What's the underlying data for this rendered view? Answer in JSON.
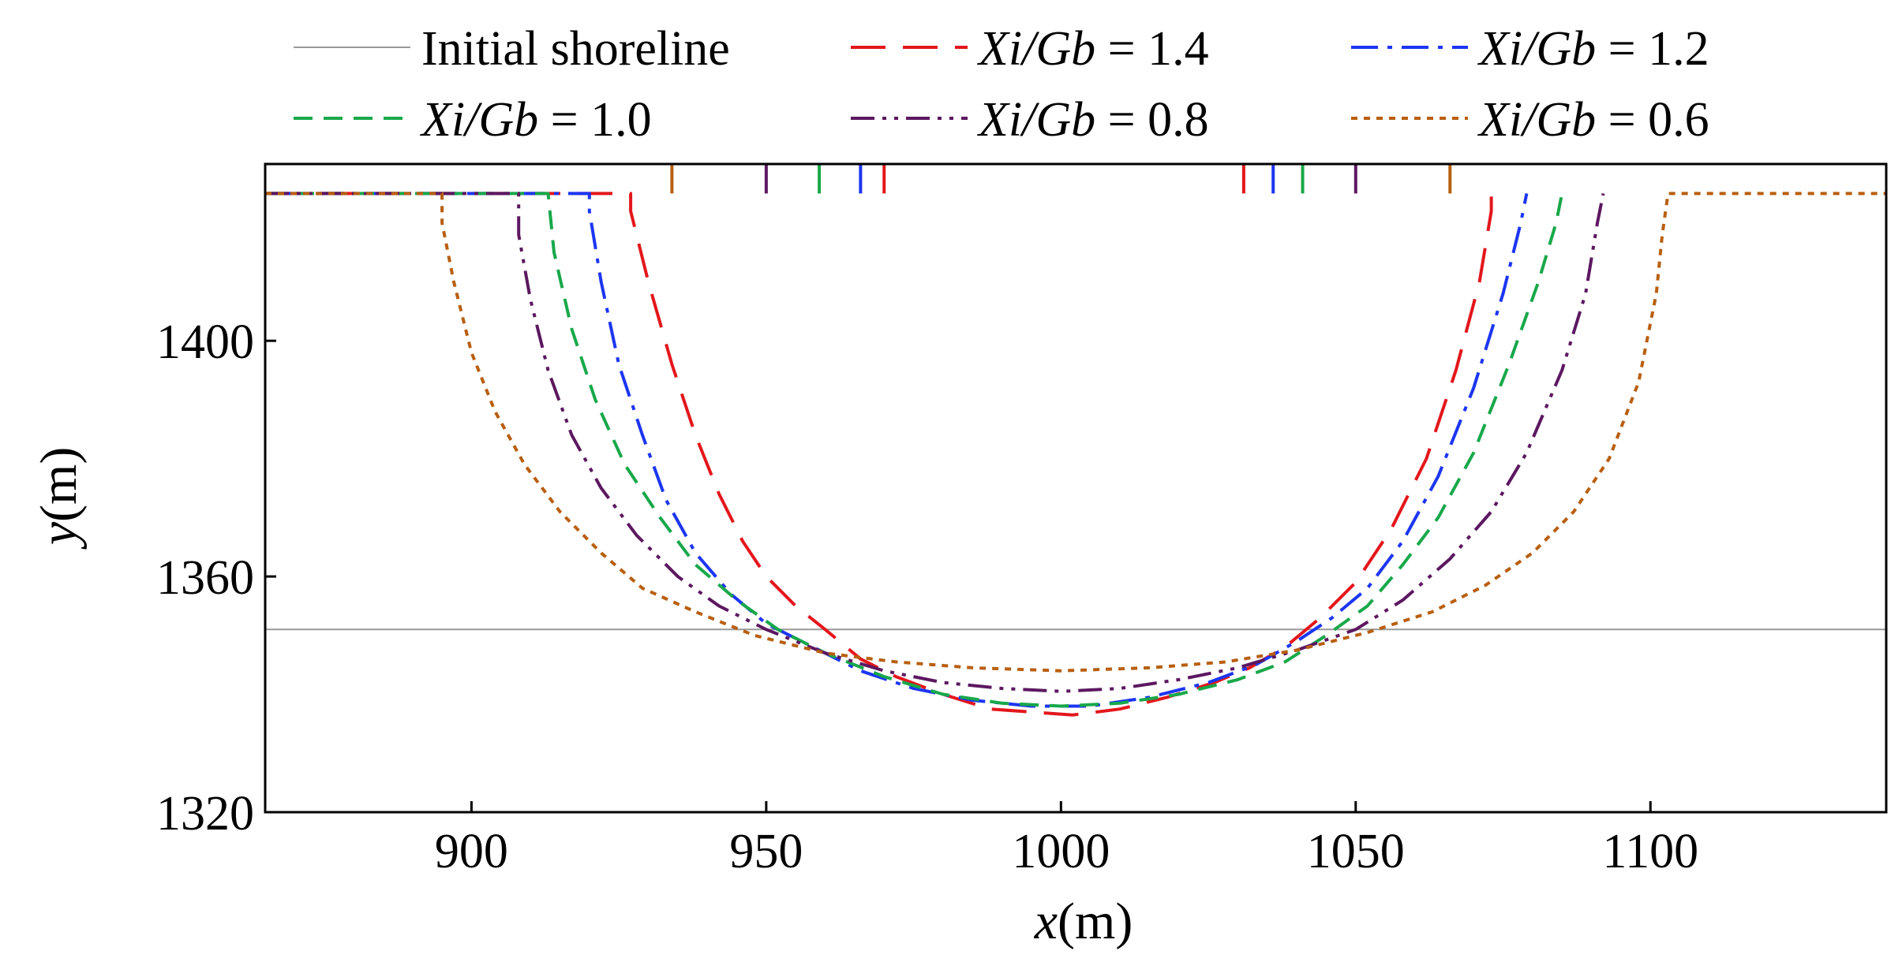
{
  "chart_data": {
    "type": "line",
    "xlabel": "x(m)",
    "ylabel": "y(m)",
    "xlim": [
      865,
      1140
    ],
    "ylim": [
      1320,
      1430
    ],
    "x_ticks": [
      900,
      950,
      1000,
      1050,
      1100
    ],
    "y_ticks": [
      1320,
      1360,
      1400
    ],
    "x_tick_labels": [
      "900",
      "950",
      "1000",
      "1050",
      "1100"
    ],
    "y_tick_labels": [
      "1320",
      "1360",
      "1400"
    ],
    "grid": false,
    "legend_position": "top",
    "series": [
      {
        "name": "Initial shoreline",
        "legend_label": "Initial shoreline",
        "color": "#999999",
        "dash": "solid",
        "points": [
          [
            865,
            1351
          ],
          [
            1140,
            1351
          ]
        ]
      },
      {
        "name": "Xi/Gb = 1.4",
        "legend_italic": "Xi/Gb",
        "legend_value": " = 1.4",
        "color": "#e3171c",
        "dash": "longdash",
        "points": [
          [
            865,
            1425
          ],
          [
            927,
            1425
          ],
          [
            927,
            1422
          ],
          [
            930,
            1410
          ],
          [
            934,
            1396
          ],
          [
            938,
            1384
          ],
          [
            942,
            1374
          ],
          [
            946,
            1366
          ],
          [
            950,
            1360
          ],
          [
            955,
            1355
          ],
          [
            960,
            1351
          ],
          [
            966,
            1346
          ],
          [
            972,
            1343
          ],
          [
            980,
            1340
          ],
          [
            988,
            1337.5
          ],
          [
            995,
            1337
          ],
          [
            1002,
            1336.5
          ],
          [
            1010,
            1337.5
          ],
          [
            1018,
            1339.5
          ],
          [
            1026,
            1342
          ],
          [
            1032,
            1344.5
          ],
          [
            1038,
            1348
          ],
          [
            1044,
            1353
          ],
          [
            1050,
            1359
          ],
          [
            1056,
            1368
          ],
          [
            1062,
            1380
          ],
          [
            1067,
            1395
          ],
          [
            1071,
            1410
          ],
          [
            1073,
            1422
          ],
          [
            1073,
            1425
          ]
        ],
        "gap": {
          "x": [
            970,
            1031
          ],
          "y": 1431
        }
      },
      {
        "name": "Xi/Gb = 1.2",
        "legend_italic": "Xi/Gb",
        "legend_value": " = 1.2",
        "color": "#1c36f2",
        "dash": "dashdot",
        "points": [
          [
            865,
            1425
          ],
          [
            920,
            1425
          ],
          [
            920,
            1422
          ],
          [
            922,
            1410
          ],
          [
            925,
            1396
          ],
          [
            929,
            1384
          ],
          [
            933,
            1373
          ],
          [
            938,
            1364
          ],
          [
            944,
            1357
          ],
          [
            950,
            1352
          ],
          [
            958,
            1348
          ],
          [
            966,
            1344
          ],
          [
            975,
            1341
          ],
          [
            985,
            1339
          ],
          [
            995,
            1338
          ],
          [
            1005,
            1338
          ],
          [
            1015,
            1339.5
          ],
          [
            1025,
            1342
          ],
          [
            1033,
            1345
          ],
          [
            1040,
            1349
          ],
          [
            1046,
            1353
          ],
          [
            1052,
            1358
          ],
          [
            1058,
            1366
          ],
          [
            1064,
            1377
          ],
          [
            1070,
            1392
          ],
          [
            1075,
            1408
          ],
          [
            1078,
            1420
          ],
          [
            1079,
            1425
          ]
        ],
        "gap": {
          "x": [
            966,
            1036
          ],
          "y": 1431
        }
      },
      {
        "name": "Xi/Gb = 1.0",
        "legend_italic": "Xi/Gb",
        "legend_value": " = 1.0",
        "color": "#18a84a",
        "dash": "dash",
        "points": [
          [
            865,
            1425
          ],
          [
            913,
            1425
          ],
          [
            914,
            1415
          ],
          [
            917,
            1402
          ],
          [
            921,
            1390
          ],
          [
            926,
            1379
          ],
          [
            932,
            1370
          ],
          [
            938,
            1362
          ],
          [
            945,
            1356
          ],
          [
            952,
            1351
          ],
          [
            960,
            1347
          ],
          [
            970,
            1343
          ],
          [
            980,
            1340
          ],
          [
            990,
            1338.5
          ],
          [
            1000,
            1338
          ],
          [
            1010,
            1338.5
          ],
          [
            1020,
            1340
          ],
          [
            1030,
            1342.5
          ],
          [
            1038,
            1345.5
          ],
          [
            1045,
            1350
          ],
          [
            1052,
            1355
          ],
          [
            1058,
            1362
          ],
          [
            1064,
            1370
          ],
          [
            1070,
            1381
          ],
          [
            1076,
            1396
          ],
          [
            1081,
            1410
          ],
          [
            1084,
            1420
          ],
          [
            1085,
            1425
          ]
        ],
        "gap": {
          "x": [
            959,
            1041
          ],
          "y": 1431
        }
      },
      {
        "name": "Xi/Gb = 0.8",
        "legend_italic": "Xi/Gb",
        "legend_value": " = 0.8",
        "color": "#5c1860",
        "dash": "dashdotdot",
        "points": [
          [
            865,
            1425
          ],
          [
            908,
            1425
          ],
          [
            908,
            1418
          ],
          [
            910,
            1407
          ],
          [
            913,
            1395
          ],
          [
            917,
            1384
          ],
          [
            922,
            1375
          ],
          [
            928,
            1367
          ],
          [
            935,
            1360
          ],
          [
            942,
            1355
          ],
          [
            950,
            1351
          ],
          [
            960,
            1347
          ],
          [
            970,
            1344
          ],
          [
            980,
            1342
          ],
          [
            990,
            1341
          ],
          [
            1000,
            1340.5
          ],
          [
            1010,
            1341
          ],
          [
            1020,
            1342.5
          ],
          [
            1030,
            1344.5
          ],
          [
            1040,
            1347.5
          ],
          [
            1050,
            1351
          ],
          [
            1058,
            1356
          ],
          [
            1066,
            1363
          ],
          [
            1073,
            1371
          ],
          [
            1079,
            1381
          ],
          [
            1085,
            1395
          ],
          [
            1089,
            1408
          ],
          [
            1091,
            1420
          ],
          [
            1092,
            1425
          ]
        ],
        "gap": {
          "x": [
            950,
            1050
          ],
          "y": 1431
        }
      },
      {
        "name": "Xi/Gb = 0.6",
        "legend_italic": "Xi/Gb",
        "legend_value": " = 0.6",
        "color": "#b85f10",
        "dash": "dot",
        "points": [
          [
            865,
            1425
          ],
          [
            895,
            1425
          ],
          [
            895,
            1420
          ],
          [
            897,
            1410
          ],
          [
            900,
            1398
          ],
          [
            904,
            1388
          ],
          [
            909,
            1379
          ],
          [
            915,
            1371
          ],
          [
            922,
            1364
          ],
          [
            929,
            1358
          ],
          [
            938,
            1354
          ],
          [
            948,
            1350
          ],
          [
            960,
            1347
          ],
          [
            972,
            1345.5
          ],
          [
            985,
            1344.5
          ],
          [
            1000,
            1344
          ],
          [
            1015,
            1344.5
          ],
          [
            1028,
            1345.5
          ],
          [
            1040,
            1347.5
          ],
          [
            1052,
            1350.5
          ],
          [
            1063,
            1354
          ],
          [
            1072,
            1358.5
          ],
          [
            1080,
            1364
          ],
          [
            1087,
            1371
          ],
          [
            1093,
            1380
          ],
          [
            1098,
            1393
          ],
          [
            1101,
            1408
          ],
          [
            1102,
            1418
          ],
          [
            1103,
            1425
          ],
          [
            1140,
            1425
          ]
        ],
        "gap": {
          "x": [
            934,
            1066
          ],
          "y": 1431
        }
      }
    ]
  }
}
